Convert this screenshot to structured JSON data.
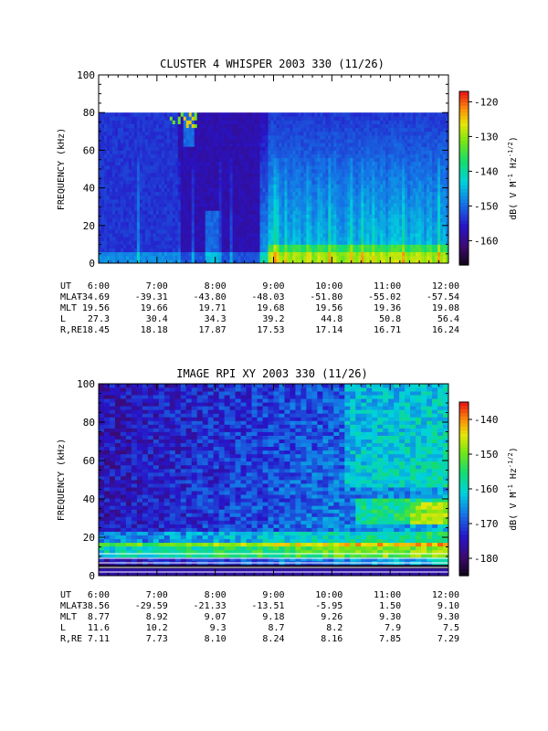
{
  "chart_data": [
    {
      "type": "heatmap",
      "title": "CLUSTER 4 WHISPER 2003 330 (11/26)",
      "ylabel": "FREQUENCY (kHz)",
      "ylim": [
        0,
        100
      ],
      "y_ticks": [
        "0",
        "20",
        "40",
        "60",
        "80",
        "100"
      ],
      "x_ticks": [
        "6:00",
        "7:00",
        "8:00",
        "9:00",
        "10:00",
        "11:00",
        "12:00"
      ],
      "colorbar": {
        "label": "dB( V M⁻¹ Hz⁻¹ᐟ²)",
        "label_main": "dB( V M",
        "label_exp1": "-1",
        "label_mid": " Hz",
        "label_exp2": "-1/2",
        "label_end": ")",
        "range": [
          -167,
          -117
        ],
        "ticks": [
          "-120",
          "-130",
          "-140",
          "-150",
          "-160"
        ]
      },
      "data_max_freq_khz": 80,
      "ephemeris": {
        "UT": [
          "6:00",
          "7:00",
          "8:00",
          "9:00",
          "10:00",
          "11:00",
          "12:00"
        ],
        "MLAT": [
          "-34.69",
          "-39.31",
          "-43.80",
          "-48.03",
          "-51.80",
          "-55.02",
          "-57.54"
        ],
        "MLT": [
          "19.56",
          "19.66",
          "19.71",
          "19.68",
          "19.56",
          "19.36",
          "19.08"
        ],
        "L": [
          "27.3",
          "30.4",
          "34.3",
          "39.2",
          "44.8",
          "50.8",
          "56.4"
        ],
        "R,RE": [
          "18.45",
          "18.18",
          "17.87",
          "17.53",
          "17.14",
          "16.71",
          "16.24"
        ]
      }
    },
    {
      "type": "heatmap",
      "title": "IMAGE RPI XY 2003 330 (11/26)",
      "ylabel": "FREQUENCY (kHz)",
      "ylim": [
        0,
        100
      ],
      "y_ticks": [
        "0",
        "20",
        "40",
        "60",
        "80",
        "100"
      ],
      "x_ticks": [
        "6:00",
        "7:00",
        "8:00",
        "9:00",
        "10:00",
        "11:00",
        "12:00"
      ],
      "colorbar": {
        "label_main": "dB( V M",
        "label_exp1": "-1",
        "label_mid": " Hz",
        "label_exp2": "-1/2",
        "label_end": ")",
        "range": [
          -185,
          -135
        ],
        "ticks": [
          "-140",
          "-150",
          "-160",
          "-170",
          "-180"
        ]
      },
      "ephemeris": {
        "UT": [
          "6:00",
          "7:00",
          "8:00",
          "9:00",
          "10:00",
          "11:00",
          "12:00"
        ],
        "MLAT": [
          "-38.56",
          "-29.59",
          "-21.33",
          "-13.51",
          "-5.95",
          "1.50",
          "9.10"
        ],
        "MLT": [
          "8.77",
          "8.92",
          "9.07",
          "9.18",
          "9.26",
          "9.30",
          "9.30"
        ],
        "L": [
          "11.6",
          "10.2",
          "9.3",
          "8.7",
          "8.2",
          "7.9",
          "7.5"
        ],
        "R,RE": [
          "7.11",
          "7.73",
          "8.10",
          "8.24",
          "8.16",
          "7.85",
          "7.29"
        ]
      }
    }
  ]
}
